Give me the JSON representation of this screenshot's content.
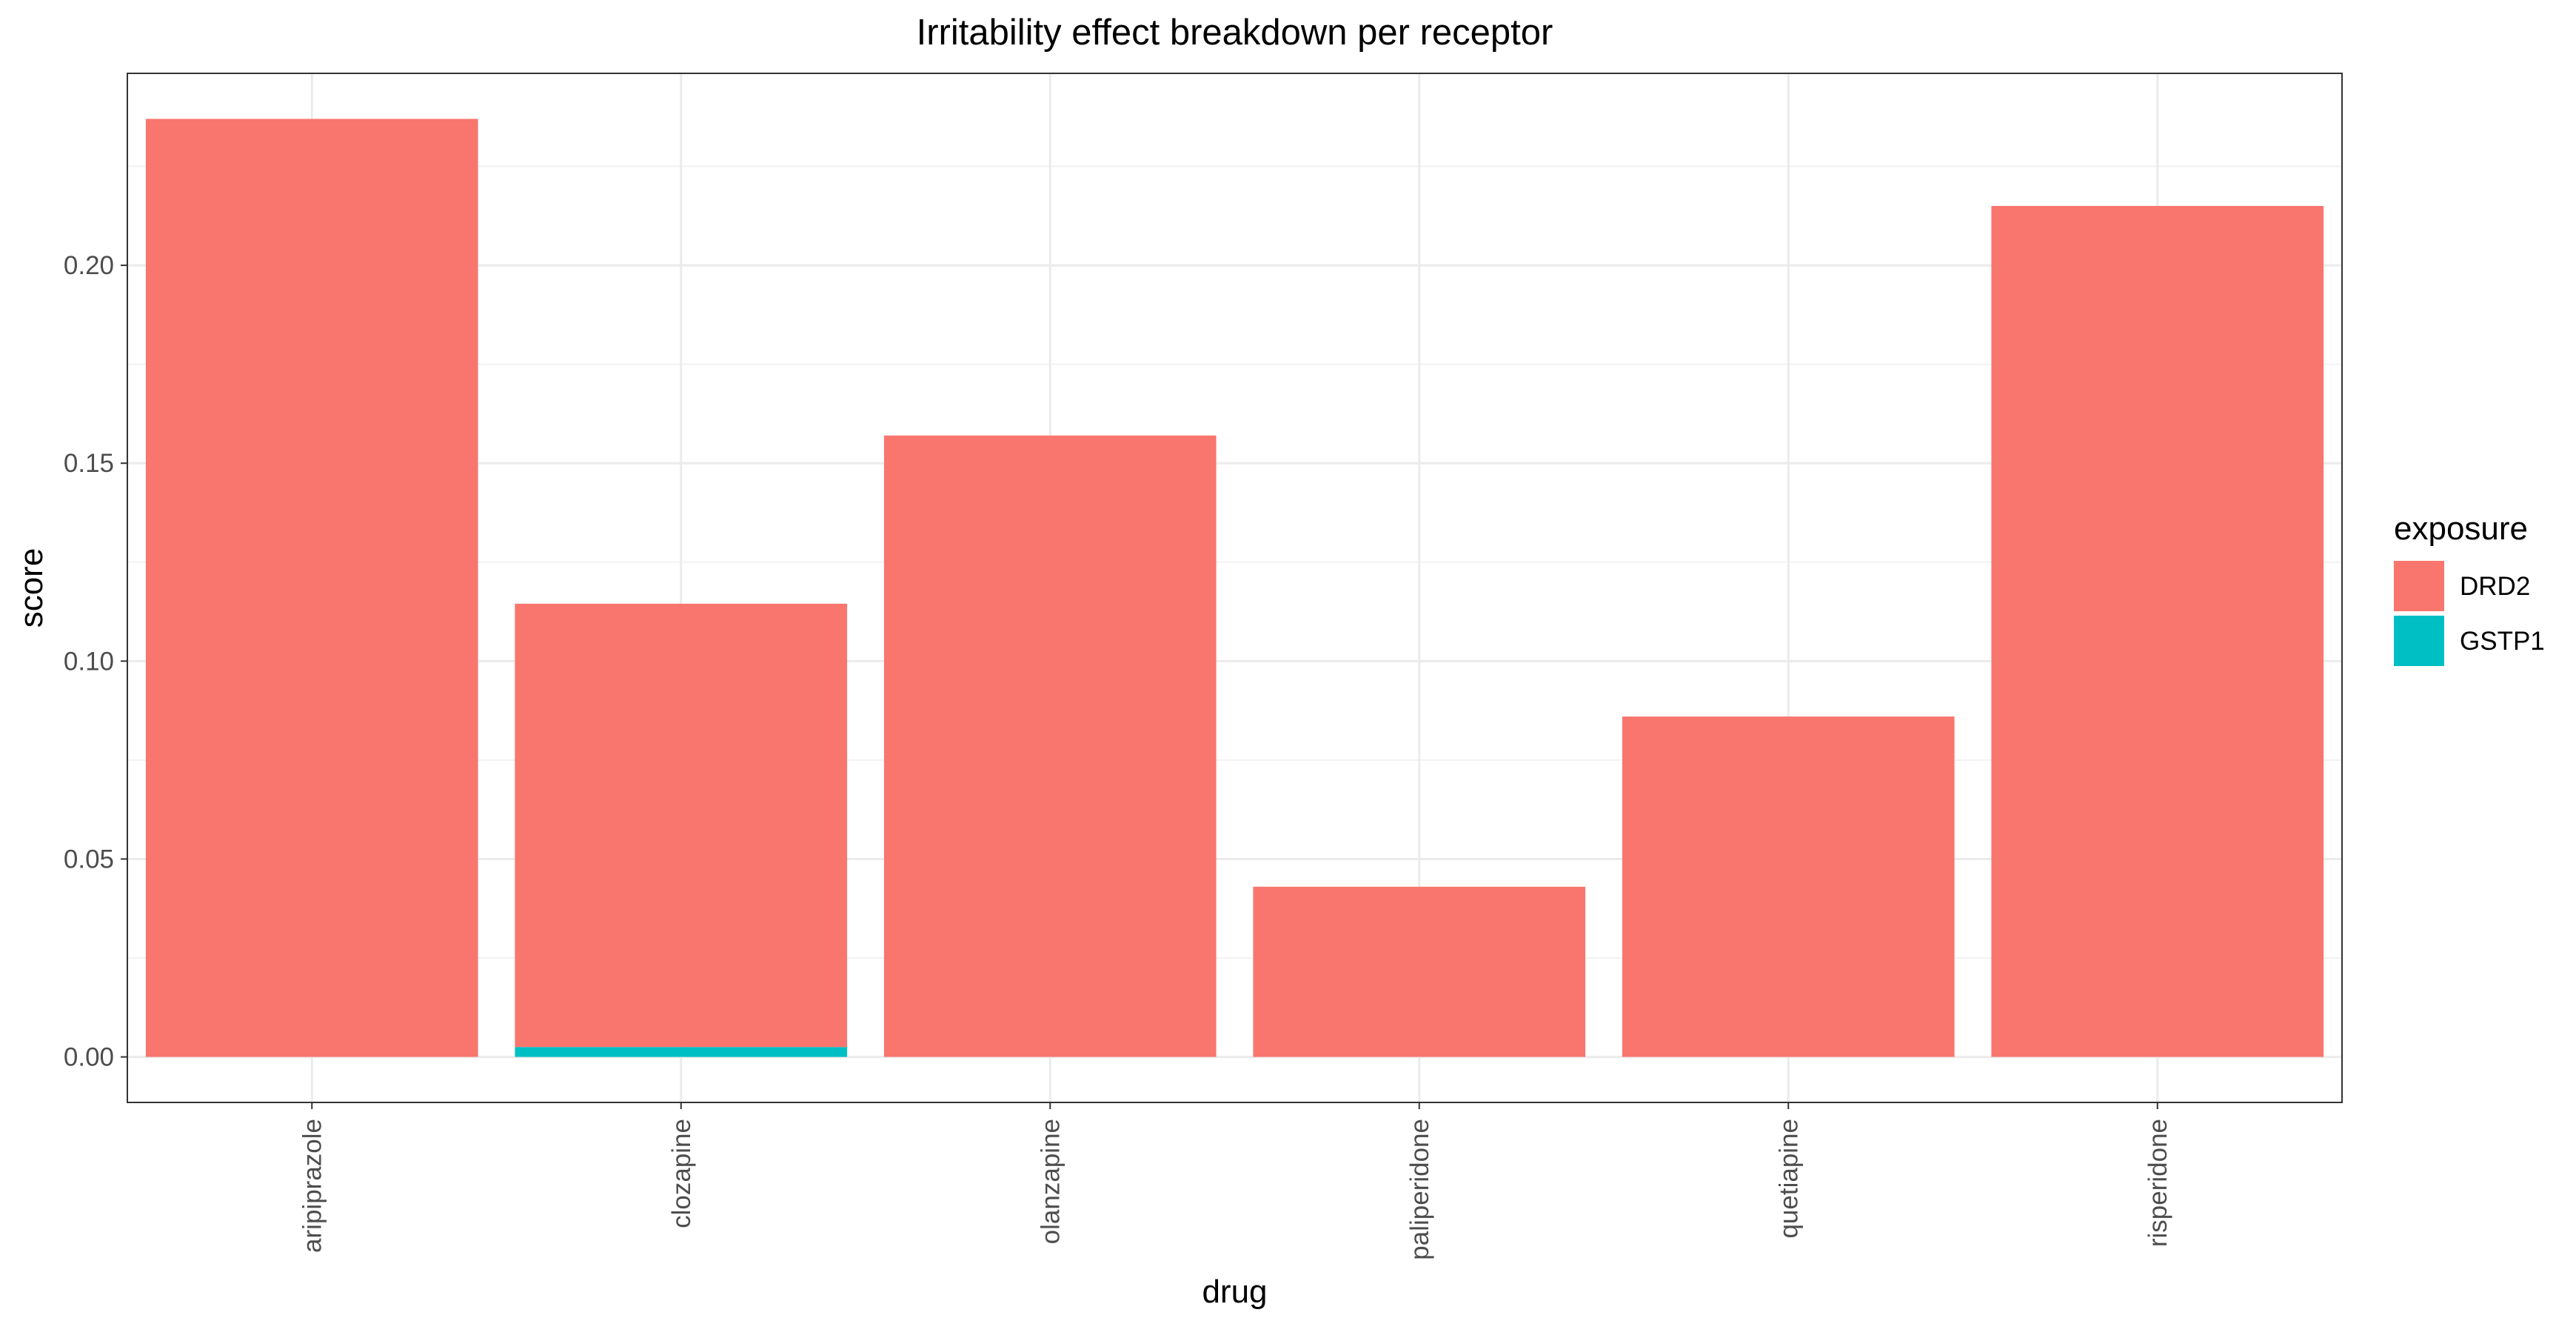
{
  "chart_data": {
    "type": "bar",
    "stacked": true,
    "title": "Irritability effect breakdown per receptor",
    "xlabel": "drug",
    "ylabel": "score",
    "categories": [
      "aripiprazole",
      "clozapine",
      "olanzapine",
      "paliperidone",
      "quetiapine",
      "risperidone"
    ],
    "series": [
      {
        "name": "GSTP1",
        "color": "#00BFC4",
        "values": [
          0,
          0.0025,
          0,
          0,
          0,
          0
        ]
      },
      {
        "name": "DRD2",
        "color": "#F8766D",
        "values": [
          0.237,
          0.112,
          0.157,
          0.043,
          0.086,
          0.215
        ]
      }
    ],
    "ylim": [
      -0.0115,
      0.2485
    ],
    "yticks": [
      0,
      0.05,
      0.1,
      0.15,
      0.2
    ],
    "ytick_labels": [
      "0.00",
      "0.05",
      "0.10",
      "0.15",
      "0.20"
    ],
    "grid": true,
    "theme": "bw",
    "legend": {
      "title": "exposure",
      "placement": "right",
      "entries": [
        "DRD2",
        "GSTP1"
      ]
    }
  }
}
